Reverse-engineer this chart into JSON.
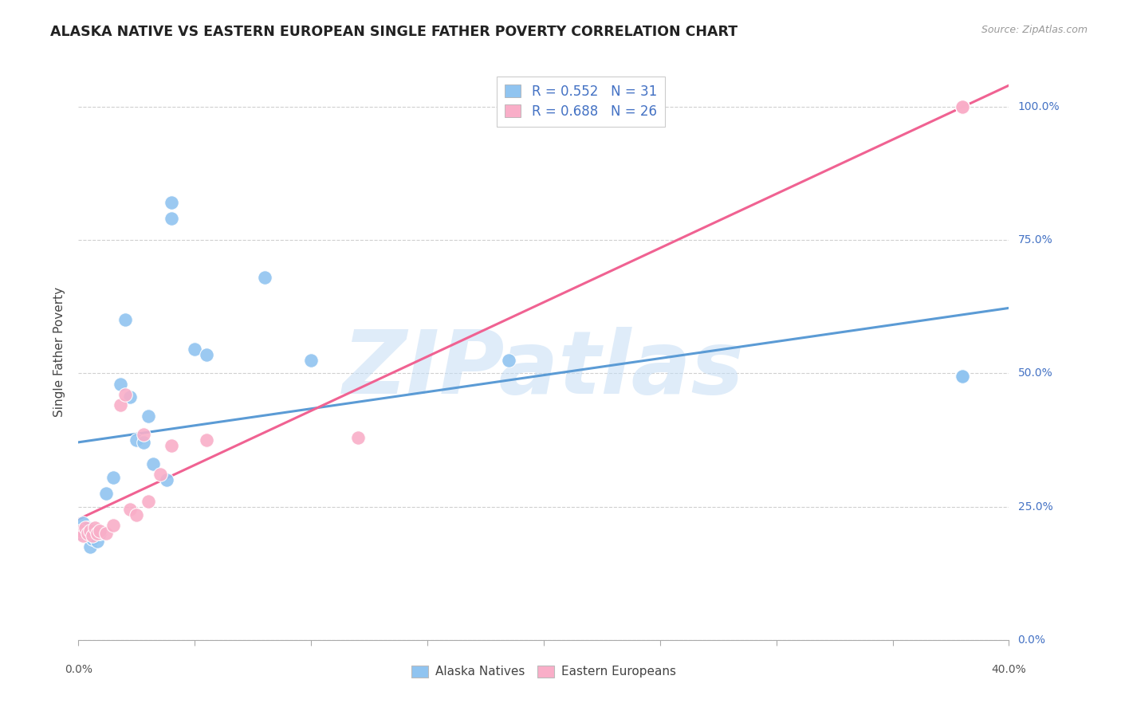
{
  "title": "ALASKA NATIVE VS EASTERN EUROPEAN SINGLE FATHER POVERTY CORRELATION CHART",
  "source": "Source: ZipAtlas.com",
  "ylabel": "Single Father Poverty",
  "yticks_labels": [
    "0.0%",
    "25.0%",
    "50.0%",
    "75.0%",
    "100.0%"
  ],
  "ytick_vals": [
    0.0,
    0.25,
    0.5,
    0.75,
    1.0
  ],
  "xlim": [
    0.0,
    0.4
  ],
  "ylim": [
    0.0,
    1.08
  ],
  "watermark": "ZIPatlas",
  "legend_blue_label": "Alaska Natives",
  "legend_pink_label": "Eastern Europeans",
  "r_blue": 0.552,
  "n_blue": 31,
  "r_pink": 0.688,
  "n_pink": 26,
  "blue_color": "#90c4f0",
  "pink_color": "#f9aec8",
  "blue_line_color": "#5b9bd5",
  "pink_line_color": "#f06292",
  "text_blue_color": "#4472c4",
  "alaska_x": [
    0.001,
    0.002,
    0.003,
    0.004,
    0.005,
    0.006,
    0.007,
    0.008,
    0.009,
    0.012,
    0.015,
    0.018,
    0.02,
    0.022,
    0.025,
    0.028,
    0.03,
    0.032,
    0.038,
    0.04,
    0.04,
    0.05,
    0.055,
    0.08,
    0.1,
    0.185,
    0.195,
    0.38,
    0.38,
    0.38,
    0.38
  ],
  "alaska_y": [
    0.2,
    0.22,
    0.2,
    0.21,
    0.175,
    0.19,
    0.205,
    0.185,
    0.2,
    0.275,
    0.305,
    0.48,
    0.6,
    0.455,
    0.375,
    0.37,
    0.42,
    0.33,
    0.3,
    0.79,
    0.82,
    0.545,
    0.535,
    0.68,
    0.525,
    0.525,
    1.0,
    0.495,
    0.495,
    0.495,
    0.495
  ],
  "eastern_x": [
    0.001,
    0.002,
    0.003,
    0.004,
    0.005,
    0.006,
    0.007,
    0.008,
    0.009,
    0.012,
    0.015,
    0.018,
    0.02,
    0.022,
    0.025,
    0.028,
    0.03,
    0.035,
    0.04,
    0.055,
    0.12,
    0.38,
    0.38,
    0.38,
    0.38,
    0.38
  ],
  "eastern_y": [
    0.205,
    0.195,
    0.21,
    0.2,
    0.205,
    0.195,
    0.21,
    0.2,
    0.205,
    0.2,
    0.215,
    0.44,
    0.46,
    0.245,
    0.235,
    0.385,
    0.26,
    0.31,
    0.365,
    0.375,
    0.38,
    1.0,
    1.0,
    1.0,
    1.0,
    1.0
  ]
}
